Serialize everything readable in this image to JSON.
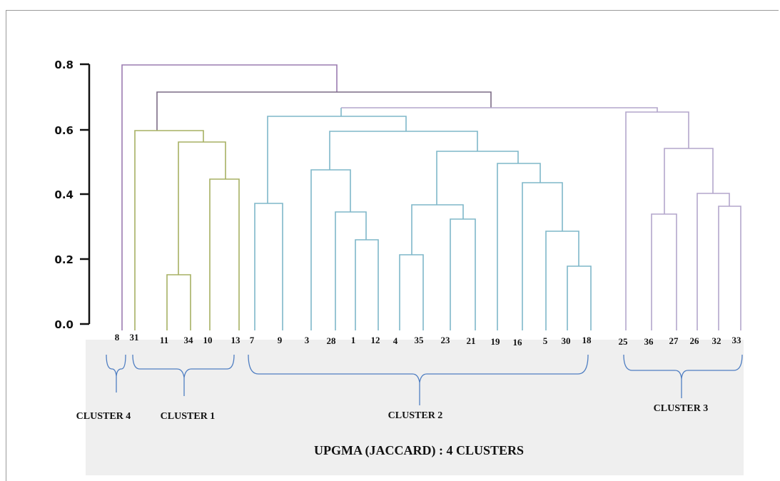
{
  "axis": {
    "ticks": [
      "0.0",
      "0.2",
      "0.4",
      "0.6",
      "0.8"
    ]
  },
  "leaves": [
    "8",
    "31",
    "11",
    "34",
    "10",
    "13",
    "7",
    "9",
    "3",
    "28",
    "1",
    "12",
    "4",
    "35",
    "23",
    "21",
    "19",
    "16",
    "5",
    "30",
    "18",
    "25",
    "36",
    "27",
    "26",
    "32",
    "33"
  ],
  "clusters": [
    {
      "label": "CLUSTER 4"
    },
    {
      "label": "CLUSTER 1"
    },
    {
      "label": "CLUSTER 2"
    },
    {
      "label": "CLUSTER 3"
    }
  ],
  "caption": "UPGMA (JACCARD) : 4 CLUSTERS",
  "colors": {
    "cluster4": "#9b7bb0",
    "cluster1": "#a7b063",
    "cluster2": "#7fb7c9",
    "cluster3": "#b3a6cc",
    "root": "#7c6c85",
    "brace": "#4f7ec2"
  }
}
